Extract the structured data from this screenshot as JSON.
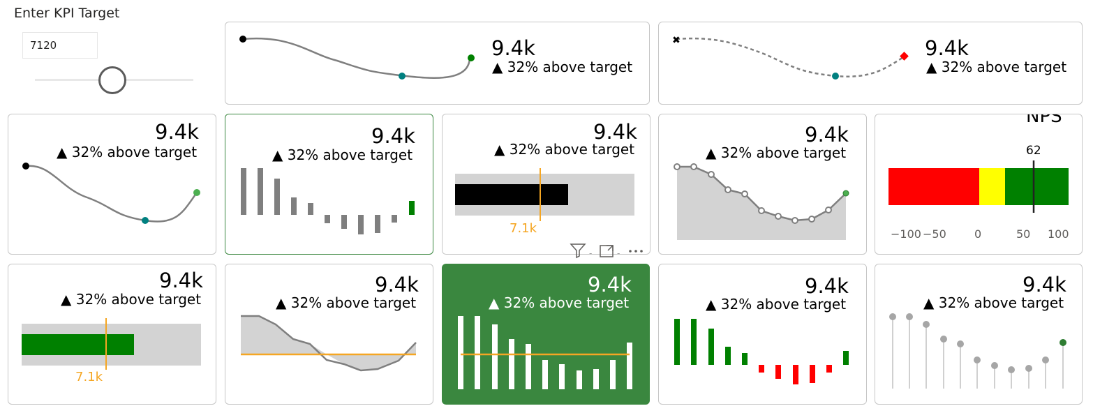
{
  "slicer": {
    "title": "Enter KPI Target",
    "value": "7120"
  },
  "kpi": {
    "value": "9.4k",
    "status": "▲ 32% above target",
    "target_label": "7.1k"
  },
  "gauge": {
    "title": "NPS",
    "value_label": "62",
    "ticks": [
      "−100",
      "−50",
      "0",
      "50",
      "100"
    ],
    "value": 62
  },
  "colors": {
    "good": "#008000",
    "bad": "#ff0000",
    "warn": "#ffff00",
    "target": "#f5a623",
    "line": "#7f7f7f",
    "teal": "#008080",
    "card_green": "#3a873f"
  },
  "toolbar": {
    "icons": [
      "filter-icon",
      "focus-mode-icon",
      "more-options-icon"
    ]
  }
}
